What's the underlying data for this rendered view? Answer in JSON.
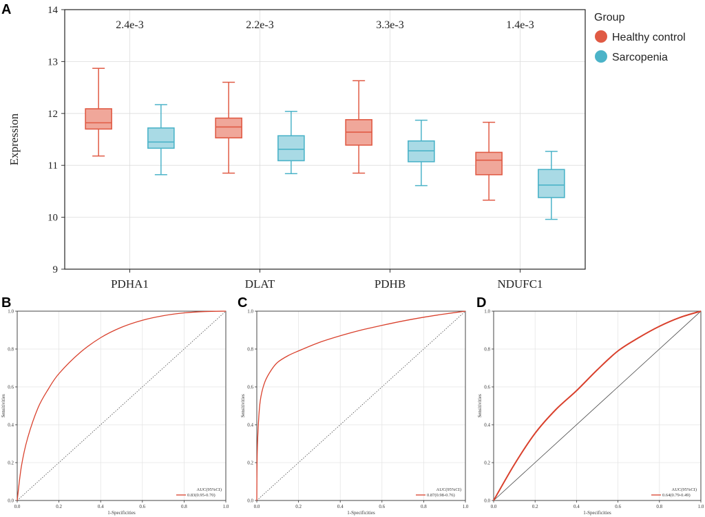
{
  "panel_labels": {
    "A": "A",
    "B": "B",
    "C": "C",
    "D": "D"
  },
  "legend": {
    "title": "Group",
    "items": [
      {
        "label": "Healthy control",
        "color": "#e05a44"
      },
      {
        "label": "Sarcopenia",
        "color": "#4bb3c8"
      }
    ]
  },
  "chart_data": [
    {
      "type": "box",
      "title": "",
      "xlabel": "",
      "ylabel": "Expression",
      "ylim": [
        9,
        14
      ],
      "yticks": [
        "9",
        "10",
        "11",
        "12",
        "13",
        "14"
      ],
      "categories": [
        "PDHA1",
        "DLAT",
        "PDHB",
        "NDUFC1"
      ],
      "pvalues": [
        "2.4e-3",
        "2.2e-3",
        "3.3e-3",
        "1.4e-3"
      ],
      "series": [
        {
          "name": "Healthy control",
          "color": "#e05a44",
          "fill": "#f0a79a",
          "boxes": [
            {
              "min": 11.18,
              "q1": 11.7,
              "median": 11.82,
              "q3": 12.09,
              "max": 12.87
            },
            {
              "min": 10.85,
              "q1": 11.53,
              "median": 11.74,
              "q3": 11.91,
              "max": 12.6
            },
            {
              "min": 10.85,
              "q1": 11.39,
              "median": 11.64,
              "q3": 11.88,
              "max": 12.63
            },
            {
              "min": 10.33,
              "q1": 10.82,
              "median": 11.1,
              "q3": 11.25,
              "max": 11.83
            }
          ]
        },
        {
          "name": "Sarcopenia",
          "color": "#4bb3c8",
          "fill": "#a9dae5",
          "boxes": [
            {
              "min": 10.82,
              "q1": 11.33,
              "median": 11.45,
              "q3": 11.72,
              "max": 12.17
            },
            {
              "min": 10.84,
              "q1": 11.09,
              "median": 11.31,
              "q3": 11.57,
              "max": 12.04
            },
            {
              "min": 10.61,
              "q1": 11.07,
              "median": 11.28,
              "q3": 11.47,
              "max": 11.87
            },
            {
              "min": 9.96,
              "q1": 10.38,
              "median": 10.62,
              "q3": 10.92,
              "max": 11.27
            }
          ]
        }
      ]
    },
    {
      "type": "line",
      "panel": "B",
      "xlabel": "1-Specificities",
      "ylabel": "Sensitivities",
      "xlim": [
        0,
        1
      ],
      "ylim": [
        0,
        1
      ],
      "xticks": [
        "0.0",
        "0.2",
        "0.4",
        "0.6",
        "0.8",
        "1.0"
      ],
      "yticks": [
        "0.0",
        "0.2",
        "0.4",
        "0.6",
        "0.8",
        "1.0"
      ],
      "curve_color": "#d9402c",
      "diagonal": "dotted",
      "legend_title": "AUC(95%CI)",
      "legend_value": "0.83(0.95-0.70)",
      "x": [
        0,
        0.02,
        0.05,
        0.1,
        0.15,
        0.2,
        0.3,
        0.4,
        0.5,
        0.6,
        0.7,
        0.8,
        0.9,
        1.0
      ],
      "y": [
        0,
        0.18,
        0.33,
        0.49,
        0.59,
        0.67,
        0.78,
        0.86,
        0.915,
        0.952,
        0.976,
        0.991,
        0.998,
        1.0
      ]
    },
    {
      "type": "line",
      "panel": "C",
      "xlabel": "1-Specificities",
      "ylabel": "Sensitivities",
      "xlim": [
        0,
        1
      ],
      "ylim": [
        0,
        1
      ],
      "xticks": [
        "0.0",
        "0.2",
        "0.4",
        "0.6",
        "0.8",
        "1.0"
      ],
      "yticks": [
        "0.0",
        "0.2",
        "0.4",
        "0.6",
        "0.8",
        "1.0"
      ],
      "curve_color": "#d9402c",
      "diagonal": "dotted",
      "legend_title": "AUC(95%CI)",
      "legend_value": "0.87(0.98-0.76)",
      "x": [
        0,
        0.002,
        0.01,
        0.02,
        0.04,
        0.07,
        0.1,
        0.15,
        0.2,
        0.3,
        0.4,
        0.5,
        0.6,
        0.7,
        0.8,
        0.9,
        1.0
      ],
      "y": [
        0,
        0.25,
        0.45,
        0.55,
        0.63,
        0.69,
        0.73,
        0.765,
        0.79,
        0.835,
        0.87,
        0.9,
        0.925,
        0.948,
        0.968,
        0.985,
        1.0
      ]
    },
    {
      "type": "line",
      "panel": "D",
      "xlabel": "1-Specificities",
      "ylabel": "Sensitivities",
      "xlim": [
        0,
        1
      ],
      "ylim": [
        0,
        1
      ],
      "xticks": [
        "0.0",
        "0.2",
        "0.4",
        "0.6",
        "0.8",
        "1.0"
      ],
      "yticks": [
        "0.0",
        "0.2",
        "0.4",
        "0.6",
        "0.8",
        "1.0"
      ],
      "curve_color": "#d9402c",
      "diagonal": "solid",
      "legend_title": "AUC(95%CI)",
      "legend_value": "0.64(0.79-0.49)",
      "x": [
        0,
        0.1,
        0.2,
        0.3,
        0.4,
        0.5,
        0.6,
        0.7,
        0.8,
        0.9,
        1.0
      ],
      "y": [
        0,
        0.19,
        0.355,
        0.48,
        0.58,
        0.69,
        0.79,
        0.86,
        0.92,
        0.967,
        1.0
      ]
    }
  ]
}
